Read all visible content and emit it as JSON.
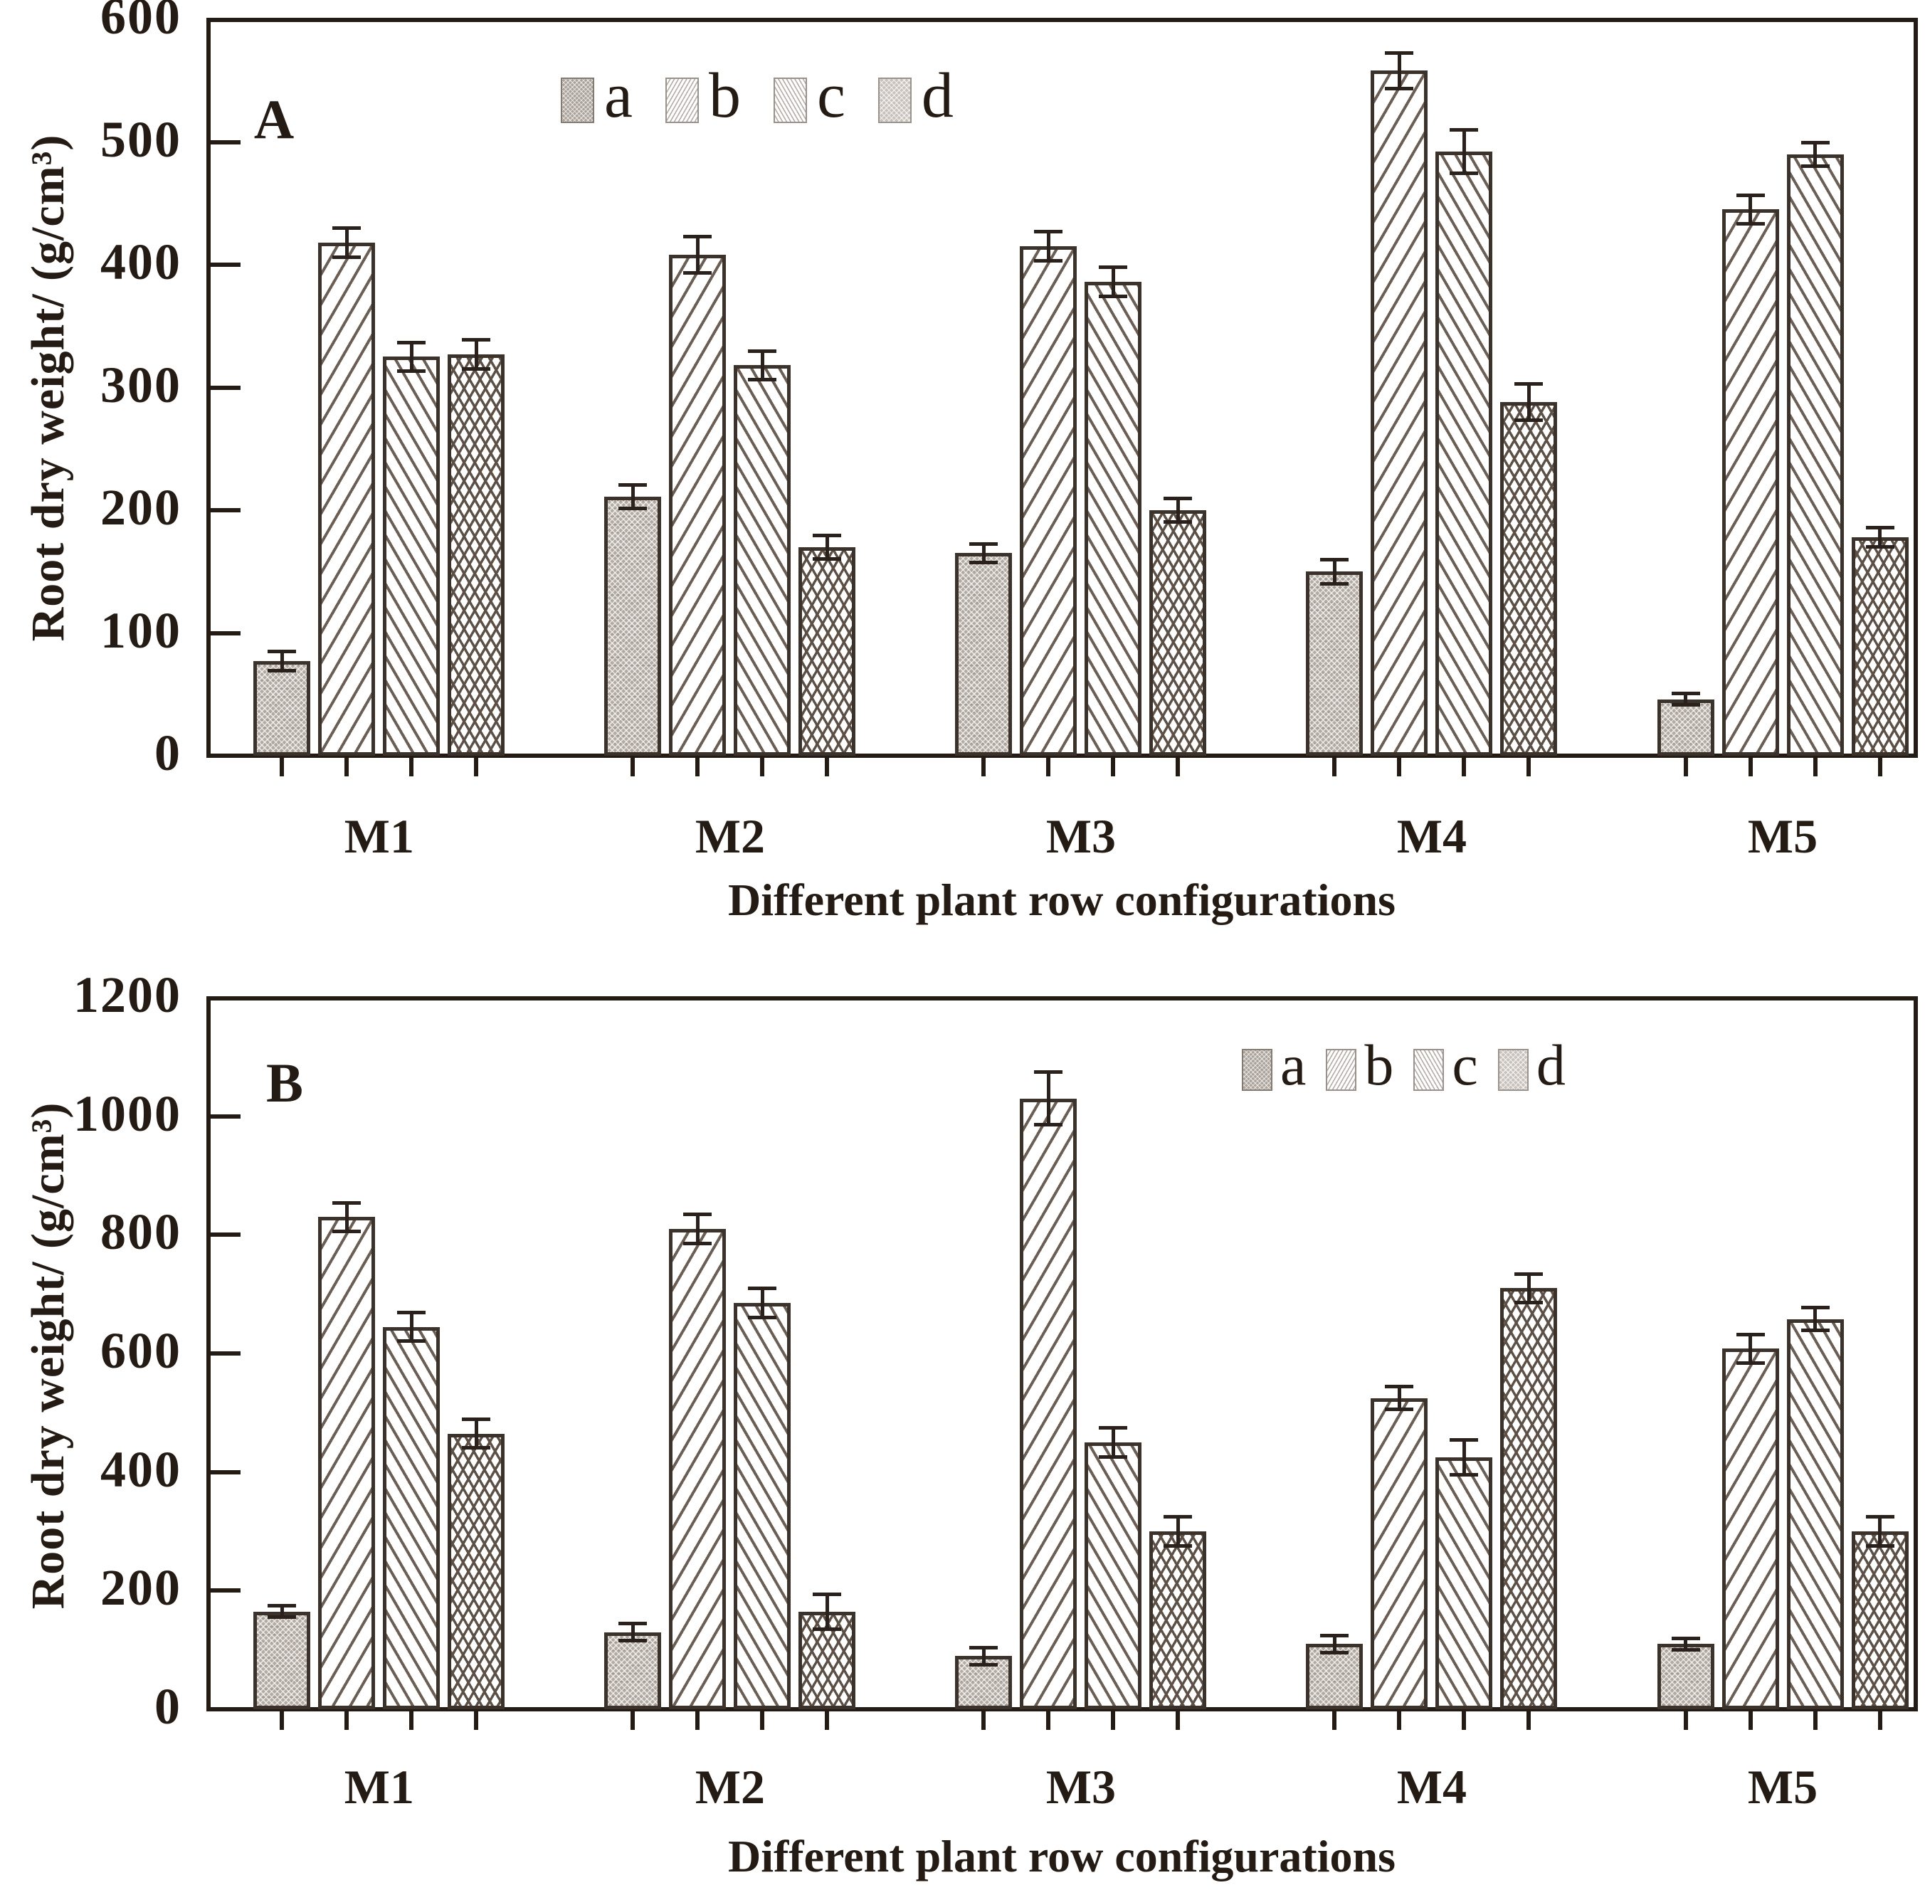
{
  "figure": {
    "background": "#ffffff",
    "ink_color": "#241b14",
    "hatch_color": "#6b5e55",
    "bar_border_color": "#3b322b",
    "series_a_fill": "#b3aba3"
  },
  "chart_data": [
    {
      "type": "bar",
      "panel_label": "A",
      "title": "",
      "ylabel": "Root dry weight/ (g/cm³)",
      "xlabel": "Different plant row configurations",
      "ylim": [
        0,
        600
      ],
      "yticks": [
        0,
        100,
        200,
        300,
        400,
        500,
        600
      ],
      "categories": [
        "M1",
        "M2",
        "M3",
        "M4",
        "M5"
      ],
      "grid": false,
      "error_bars": true,
      "legend_position": "top-center-left",
      "legend_entries": [
        "a",
        "b",
        "c",
        "d"
      ],
      "series": [
        {
          "name": "a",
          "pattern": "gray-dotted",
          "values": [
            77,
            211,
            165,
            150,
            46
          ],
          "errors": [
            8,
            10,
            8,
            10,
            5
          ]
        },
        {
          "name": "b",
          "pattern": "diagonal-forward-hatch",
          "values": [
            418,
            408,
            415,
            558,
            445
          ],
          "errors": [
            12,
            15,
            12,
            15,
            12
          ]
        },
        {
          "name": "c",
          "pattern": "diagonal-backward-hatch",
          "values": [
            325,
            318,
            386,
            492,
            490
          ],
          "errors": [
            12,
            12,
            12,
            18,
            10
          ]
        },
        {
          "name": "d",
          "pattern": "diamond-crosshatch",
          "values": [
            327,
            170,
            200,
            288,
            178
          ],
          "errors": [
            12,
            10,
            10,
            15,
            8
          ]
        }
      ]
    },
    {
      "type": "bar",
      "panel_label": "B",
      "title": "",
      "ylabel": "Root dry weight/ (g/cm³)",
      "xlabel": "Different plant row configurations",
      "ylim": [
        0,
        1200
      ],
      "yticks": [
        0,
        200,
        400,
        600,
        800,
        1000,
        1200
      ],
      "categories": [
        "M1",
        "M2",
        "M3",
        "M4",
        "M5"
      ],
      "grid": false,
      "error_bars": true,
      "legend_position": "top-right",
      "legend_entries": [
        "a",
        "b",
        "c",
        "d"
      ],
      "series": [
        {
          "name": "a",
          "pattern": "gray-dotted",
          "values": [
            165,
            130,
            90,
            110,
            110
          ],
          "errors": [
            10,
            15,
            15,
            15,
            10
          ]
        },
        {
          "name": "b",
          "pattern": "diagonal-forward-hatch",
          "values": [
            830,
            810,
            1030,
            525,
            608
          ],
          "errors": [
            25,
            25,
            45,
            20,
            25
          ]
        },
        {
          "name": "c",
          "pattern": "diagonal-backward-hatch",
          "values": [
            645,
            685,
            450,
            425,
            658
          ],
          "errors": [
            25,
            25,
            25,
            30,
            20
          ]
        },
        {
          "name": "d",
          "pattern": "diamond-crosshatch",
          "values": [
            465,
            165,
            300,
            710,
            300
          ],
          "errors": [
            25,
            30,
            25,
            25,
            25
          ]
        }
      ]
    }
  ]
}
